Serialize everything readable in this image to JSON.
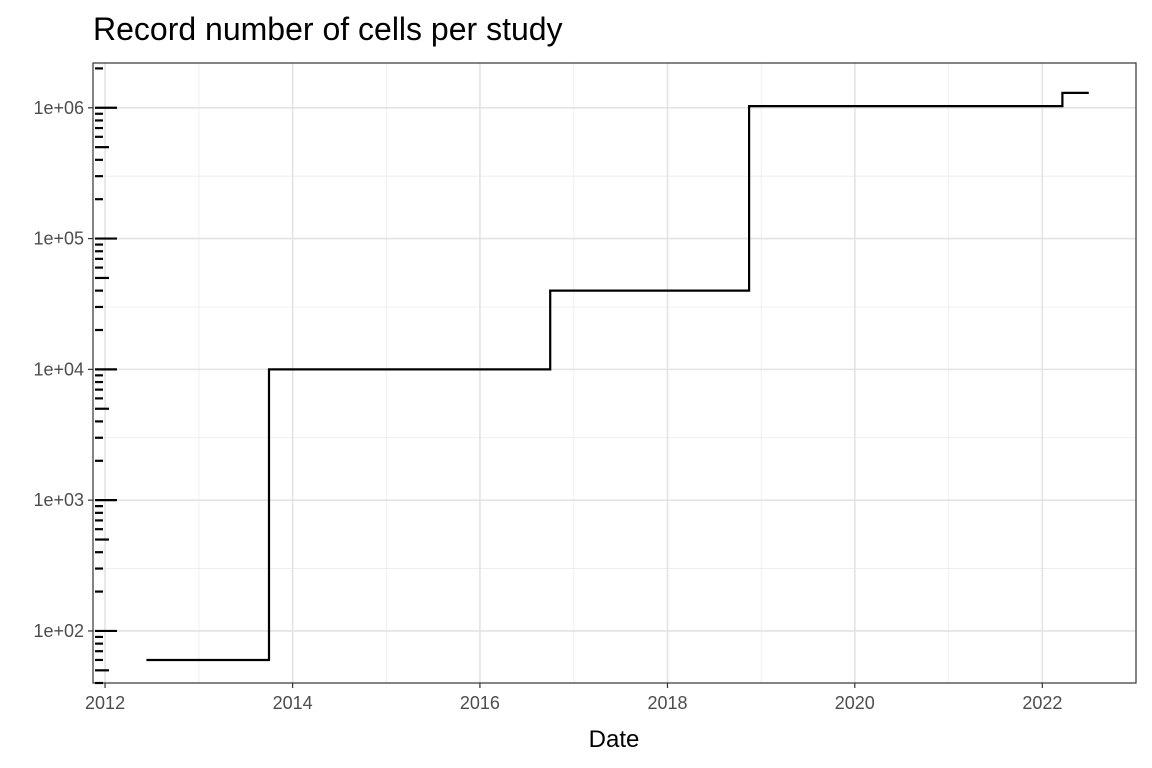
{
  "chart_data": {
    "type": "line",
    "step": true,
    "title": "Record number of cells per study",
    "xlabel": "Date",
    "ylabel": "",
    "x_axis_type": "date",
    "xlim": [
      "2011-11-15",
      "2023-01-01"
    ],
    "ylim": [
      40,
      2200000
    ],
    "y_scale": "log10",
    "grid": true,
    "x_ticks": [
      {
        "value": "2012-01-01",
        "label": "2012"
      },
      {
        "value": "2014-01-01",
        "label": "2014"
      },
      {
        "value": "2016-01-01",
        "label": "2016"
      },
      {
        "value": "2018-01-01",
        "label": "2018"
      },
      {
        "value": "2020-01-01",
        "label": "2020"
      },
      {
        "value": "2022-01-01",
        "label": "2022"
      }
    ],
    "x_minor_ticks": [
      "2013-01-01",
      "2015-01-01",
      "2017-01-01",
      "2019-01-01",
      "2021-01-01"
    ],
    "y_ticks": [
      {
        "value": 100,
        "label": "1e+02"
      },
      {
        "value": 1000,
        "label": "1e+03"
      },
      {
        "value": 10000,
        "label": "1e+04"
      },
      {
        "value": 100000,
        "label": "1e+05"
      },
      {
        "value": 1000000,
        "label": "1e+06"
      }
    ],
    "y_minor_ticks": [
      300,
      3000,
      30000,
      300000
    ],
    "rug": "log ticks on y axis",
    "series": [
      {
        "x": [
          "2012-06-10",
          "2013-10-01",
          "2016-10-01",
          "2018-11-15",
          "2022-03-20",
          "2022-07-01"
        ],
        "y": [
          60,
          10000,
          40000,
          1030000,
          1300000,
          1300000
        ],
        "color": "#000000"
      }
    ]
  }
}
